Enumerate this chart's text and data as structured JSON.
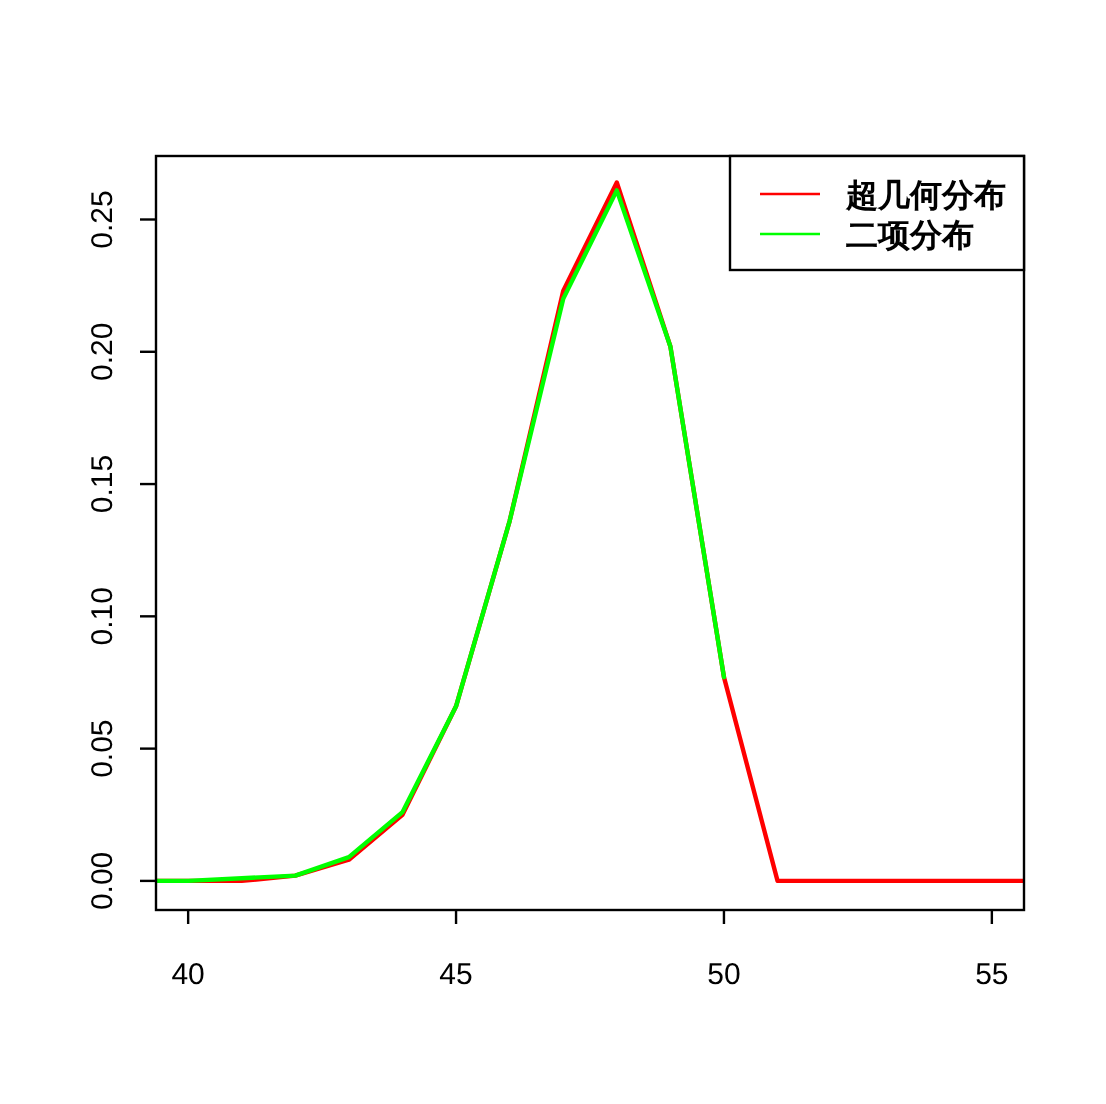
{
  "chart_data": {
    "type": "line",
    "series": [
      {
        "name": "超几何分布",
        "color": "#ff0000",
        "x": [
          39.4,
          40,
          41,
          42,
          43,
          44,
          45,
          46,
          47,
          48,
          49,
          50,
          51,
          52,
          53,
          54,
          55,
          55.6
        ],
        "values": [
          0,
          0,
          0,
          0.002,
          0.008,
          0.025,
          0.066,
          0.136,
          0.223,
          0.264,
          0.202,
          0.077,
          0,
          0,
          0,
          0,
          0,
          0
        ]
      },
      {
        "name": "二项分布",
        "color": "#00ff00",
        "x": [
          39.4,
          40,
          41,
          42,
          43,
          44,
          45,
          46,
          47,
          48,
          49,
          50
        ],
        "values": [
          0,
          0,
          0.001,
          0.002,
          0.009,
          0.026,
          0.066,
          0.136,
          0.22,
          0.261,
          0.202,
          0.077
        ]
      }
    ],
    "xlim": [
      39.4,
      55.6
    ],
    "xticks": [
      40,
      45,
      50,
      55
    ],
    "ylim": [
      -0.011,
      0.274
    ],
    "yticks": [
      {
        "value": 0,
        "label": "0.00"
      },
      {
        "value": 0.05,
        "label": "0.05"
      },
      {
        "value": 0.1,
        "label": "0.10"
      },
      {
        "value": 0.15,
        "label": "0.15"
      },
      {
        "value": 0.2,
        "label": "0.20"
      },
      {
        "value": 0.25,
        "label": "0.25"
      }
    ],
    "legend": "top right"
  }
}
